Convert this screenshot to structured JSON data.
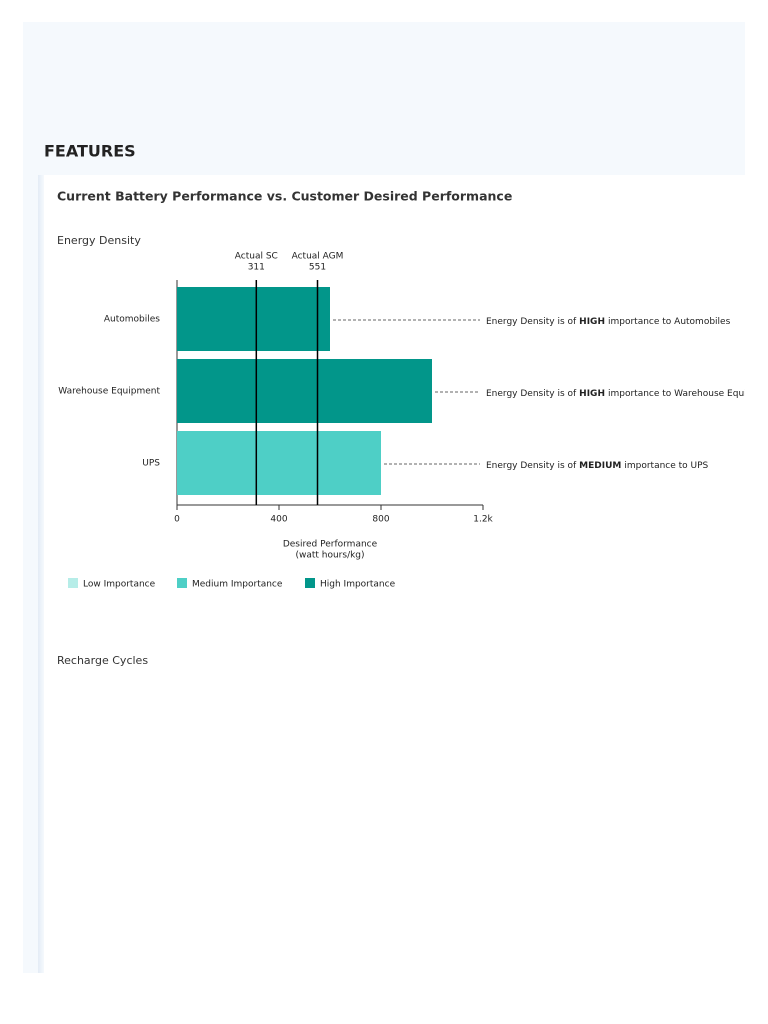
{
  "header": {
    "title": "FEATURES"
  },
  "card": {
    "title": "Current Battery Performance vs. Customer Desired Performance",
    "sections": [
      "Energy Density",
      "Recharge Cycles"
    ]
  },
  "chart_data": {
    "type": "bar",
    "orientation": "horizontal",
    "categories": [
      "Automobiles",
      "Warehouse Equipment",
      "UPS"
    ],
    "values": [
      600,
      1000,
      800
    ],
    "colors": [
      "#02968a",
      "#02968a",
      "#4ecfc6"
    ],
    "xlim": [
      0,
      1200
    ],
    "xticks": [
      0,
      400,
      800,
      {
        "value": 1200,
        "label": "1.2k"
      }
    ],
    "xlabel": [
      "Desired Performance",
      "(watt hours/kg)"
    ],
    "reference_lines": [
      {
        "label": "Actual SC",
        "value": 311
      },
      {
        "label": "Actual AGM",
        "value": 551
      }
    ],
    "annotations": [
      {
        "prefix": "Energy Density is of",
        "emphasis": "HIGH",
        "suffix": "importance to Automobiles"
      },
      {
        "prefix": "Energy Density is of",
        "emphasis": "HIGH",
        "suffix": "importance to Warehouse Equipment"
      },
      {
        "prefix": "Energy Density is of",
        "emphasis": "MEDIUM",
        "suffix": "importance to UPS"
      }
    ],
    "legend": [
      {
        "name": "Low Importance",
        "color": "#b6ede8"
      },
      {
        "name": "Medium Importance",
        "color": "#4ecfc6"
      },
      {
        "name": "High Importance",
        "color": "#02968a"
      }
    ]
  }
}
